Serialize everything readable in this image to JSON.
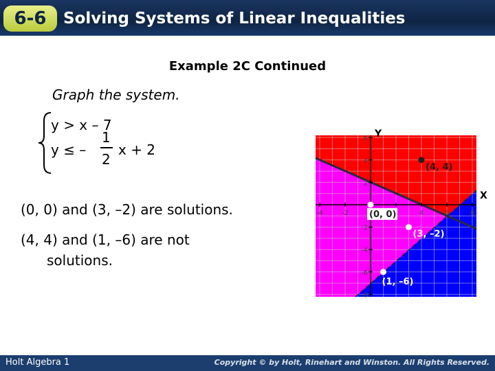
{
  "header": {
    "badge": "6-6",
    "title": "Solving Systems of Linear Inequalities"
  },
  "subtitle": "Example 2C Continued",
  "instruction": "Graph the system.",
  "system": {
    "line1": "y > x – 7",
    "line2_prefix": "y ≤ –",
    "numerator": "1",
    "denominator": "2",
    "line2_suffix": "x + 2"
  },
  "notes": [
    "(0, 0) and (3, –2) are solutions.",
    "(4, 4) and (1, –6) are not",
    "solutions."
  ],
  "graph": {
    "x_label": "X",
    "y_label": "Y",
    "xticks": [
      -4,
      -2,
      2,
      4,
      6,
      8
    ],
    "yticks": [
      6,
      4,
      2,
      -2,
      -4,
      -6,
      -8
    ],
    "points": [
      {
        "x": 4,
        "y": 4,
        "label": "(4, 4)"
      },
      {
        "x": 0,
        "y": 0,
        "label": "(0, 0)"
      },
      {
        "x": 3,
        "y": -2,
        "label": "(3, –2)"
      },
      {
        "x": 1,
        "y": -6,
        "label": "(1, –6)"
      }
    ]
  },
  "footer": {
    "left": "Holt Algebra 1",
    "right": "Copyright © by Holt, Rinehart and Winston. All Rights Reserved."
  }
}
